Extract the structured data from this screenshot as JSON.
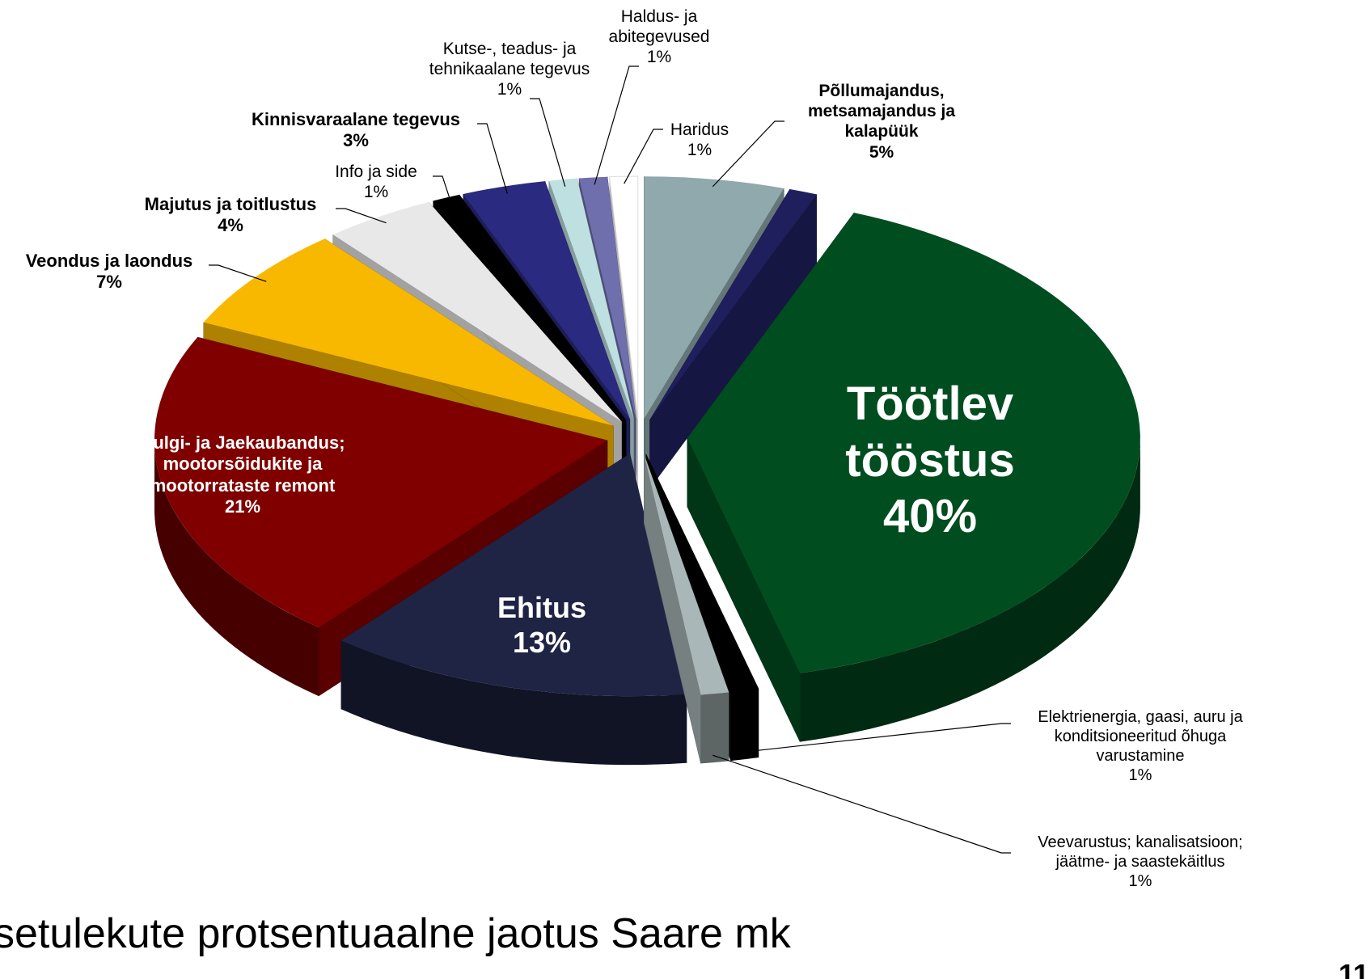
{
  "chart_data": {
    "type": "pie",
    "title": "setulekute protsentuaalne jaotus Saare mk",
    "page_number": "11",
    "categories": [
      "Põllumajandus,\nmetsamajandus ja\nkalapüük",
      null,
      "Töötlev\ntööstus",
      "Elektrienergia, gaasi, auru ja\nkonditsioneeritud õhuga\nvarustamine",
      "Veevarustus; kanalisatsioon;\njäätme- ja saastekäitlus",
      "Ehitus",
      "Hulgi- ja Jaekaubandus;\nmootorsõidukite ja\nmootorrataste remont",
      "Veondus ja laondus",
      "Majutus ja toitlustus",
      "Info ja side",
      "Kinnisvaraalane tegevus",
      "Kutse-, teadus- ja\ntehnikaalane tegevus",
      "Haldus- ja\nabitegevused",
      "Haridus"
    ],
    "values": [
      5,
      1,
      40,
      1,
      1,
      13,
      21,
      7,
      4,
      1,
      3,
      1,
      1,
      1
    ],
    "value_labels": [
      "5%",
      null,
      "40%",
      "1%",
      "1%",
      "13%",
      "21%",
      "7%",
      "4%",
      "1%",
      "3%",
      "1%",
      "1%",
      "1%"
    ],
    "colors": [
      "#8fa9ac",
      "#1f1f5e",
      "#004d1f",
      "#000000",
      "#a9b7b8",
      "#1f2444",
      "#800000",
      "#f8b800",
      "#e8e8e8",
      "#000000",
      "#2a2a80",
      "#bfe0e0",
      "#6f6fae",
      "#ffffff"
    ],
    "label_bold": [
      true,
      false,
      true,
      false,
      false,
      true,
      true,
      true,
      true,
      false,
      true,
      false,
      false,
      false
    ],
    "label_color": [
      "#000000",
      "#000000",
      "#ffffff",
      "#000000",
      "#000000",
      "#ffffff",
      "#ffffff",
      "#000000",
      "#000000",
      "#000000",
      "#000000",
      "#000000",
      "#000000",
      "#000000"
    ]
  }
}
